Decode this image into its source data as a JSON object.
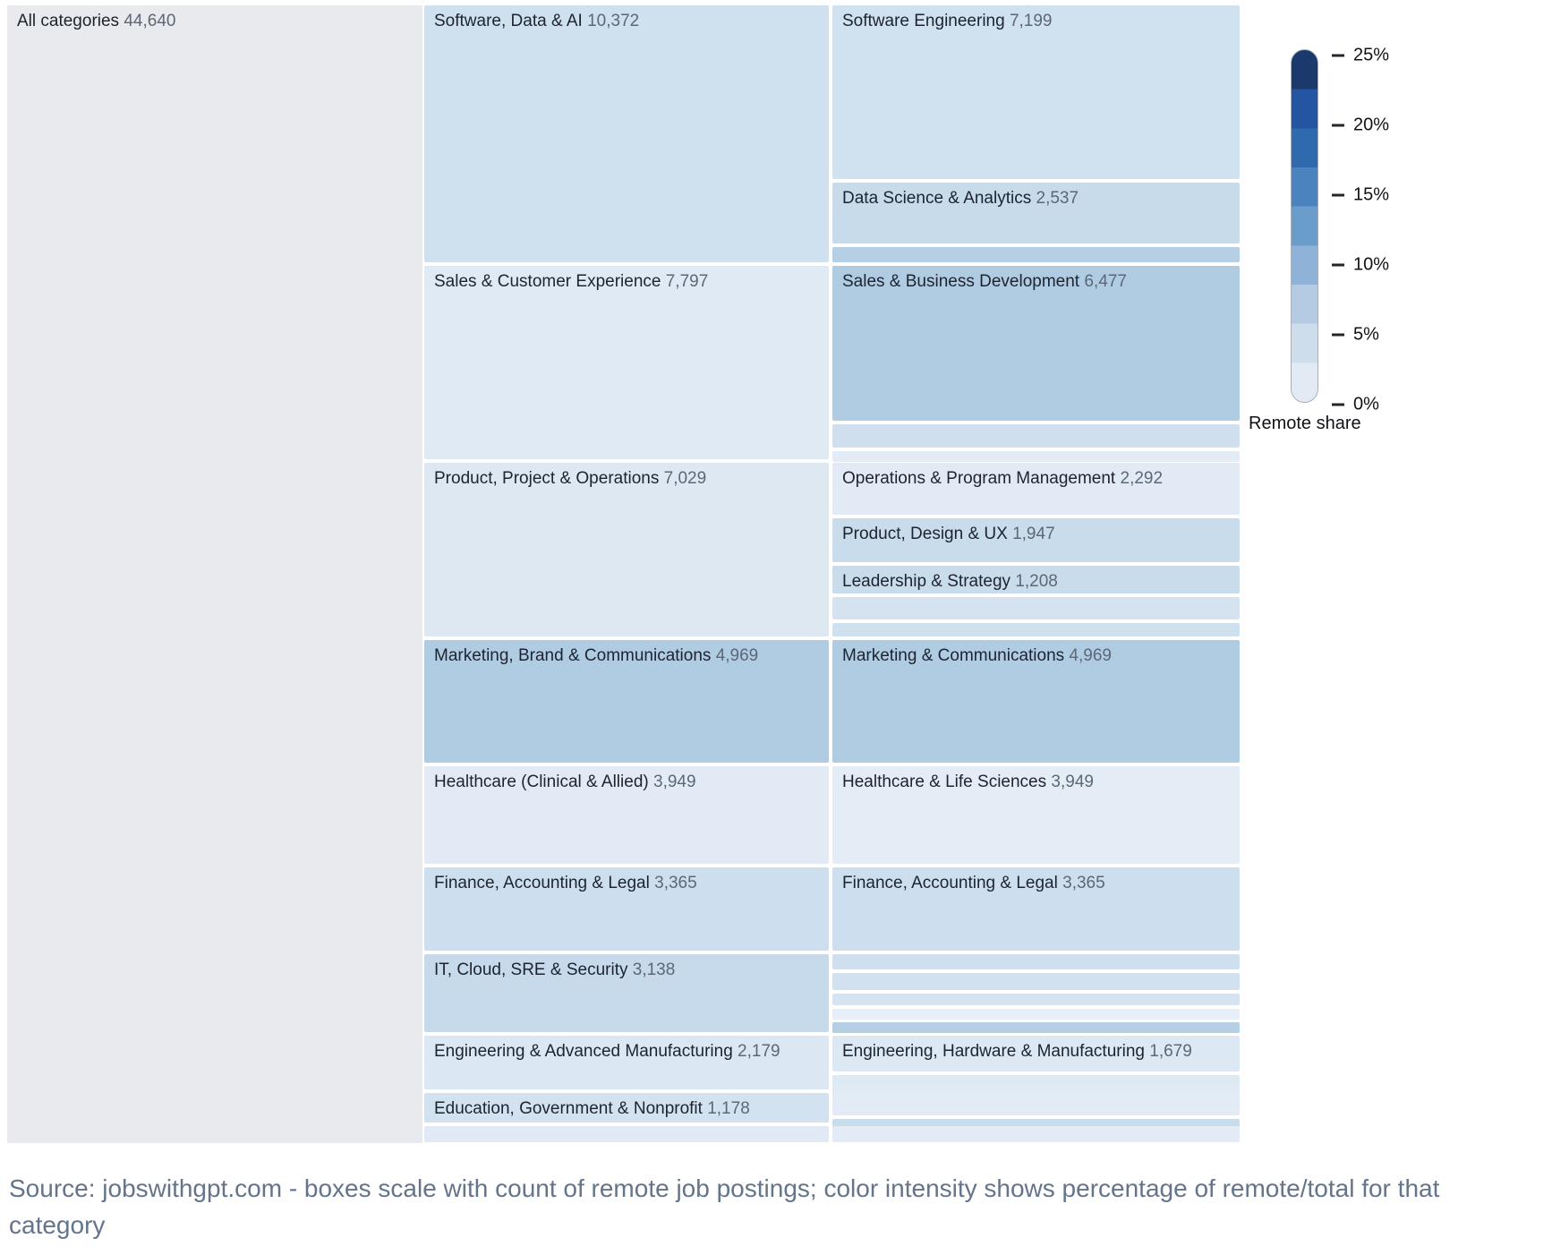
{
  "chart_data": {
    "type": "icicle",
    "unit": "remote job postings",
    "total": 44640,
    "root": {
      "label": "All categories",
      "value": 44640,
      "value_label": "44,640",
      "color": "#e8eaed"
    },
    "categories": [
      {
        "label": "Software, Data & AI",
        "value": 10372,
        "value_label": "10,372",
        "color": "#cfe0ef",
        "children": [
          {
            "label": "Software Engineering",
            "value": 7199,
            "value_label": "7,199",
            "color": "#d0e1ef"
          },
          {
            "label": "Data Science & Analytics",
            "value": 2537,
            "value_label": "2,537",
            "color": "#c7dbeb"
          },
          {
            "label": "",
            "value": 636,
            "value_label": "",
            "color": "#b5cfe4"
          }
        ]
      },
      {
        "label": "Sales & Customer Experience",
        "value": 7797,
        "value_label": "7,797",
        "color": "#e0eaf5",
        "children": [
          {
            "label": "Sales & Business Development",
            "value": 6477,
            "value_label": "6,477",
            "color": "#b0cce3"
          },
          {
            "label": "",
            "value": 990,
            "value_label": "",
            "color": "#cfdfee"
          },
          {
            "label": "",
            "value": 330,
            "value_label": "",
            "color": "#e3ecf6"
          }
        ]
      },
      {
        "label": "Product, Project & Operations",
        "value": 7029,
        "value_label": "7,029",
        "color": "#dde8f3",
        "children": [
          {
            "label": "Operations & Program Management",
            "value": 2292,
            "value_label": "2,292",
            "color": "#e2eaf5"
          },
          {
            "label": "Product, Design & UX",
            "value": 1947,
            "value_label": "1,947",
            "color": "#c9dcec"
          },
          {
            "label": "Leadership & Strategy",
            "value": 1208,
            "value_label": "1,208",
            "color": "#c9dcec"
          },
          {
            "label": "",
            "value": 1000,
            "value_label": "",
            "color": "#d5e3f0"
          },
          {
            "label": "",
            "value": 582,
            "value_label": "",
            "color": "#cfe0ee"
          }
        ]
      },
      {
        "label": "Marketing, Brand & Communications",
        "value": 4969,
        "value_label": "4,969",
        "color": "#b0cce3",
        "children": [
          {
            "label": "Marketing & Communications",
            "value": 4969,
            "value_label": "4,969",
            "color": "#b0cce3"
          }
        ]
      },
      {
        "label": "Healthcare (Clinical & Allied)",
        "value": 3949,
        "value_label": "3,949",
        "color": "#e2ebf5",
        "children": [
          {
            "label": "Healthcare & Life Sciences",
            "value": 3949,
            "value_label": "3,949",
            "color": "#e4ecf6"
          }
        ]
      },
      {
        "label": "Finance, Accounting & Legal",
        "value": 3365,
        "value_label": "3,365",
        "color": "#cddfee",
        "children": [
          {
            "label": "Finance, Accounting & Legal",
            "value": 3365,
            "value_label": "3,365",
            "color": "#cddfee"
          }
        ]
      },
      {
        "label": "IT, Cloud, SRE & Security",
        "value": 3138,
        "value_label": "3,138",
        "color": "#c6daeb",
        "children": [
          {
            "label": "",
            "value": 770,
            "value_label": "",
            "color": "#cfdfee"
          },
          {
            "label": "",
            "value": 840,
            "value_label": "",
            "color": "#d2e1ef"
          },
          {
            "label": "",
            "value": 575,
            "value_label": "",
            "color": "#d6e4f1"
          },
          {
            "label": "",
            "value": 490,
            "value_label": "",
            "color": "#e6eef7"
          },
          {
            "label": "",
            "value": 463,
            "value_label": "",
            "color": "#b5cfe4"
          }
        ]
      },
      {
        "label": "Engineering & Advanced Manufacturing",
        "value": 2179,
        "value_label": "2,179",
        "color": "#dbe7f2",
        "children": [
          {
            "label": "Engineering, Hardware & Manufacturing",
            "value": 1679,
            "value_label": "1,679",
            "color": "#dce8f3"
          },
          {
            "label": "",
            "value": 310,
            "value_label": "",
            "color": "#dde9f3"
          },
          {
            "label": "",
            "value": 190,
            "value_label": "",
            "color": "#e0eaf4"
          }
        ]
      },
      {
        "label": "Education, Government & Nonprofit",
        "value": 1178,
        "value_label": "1,178",
        "color": "#d3e2f0",
        "children": [
          {
            "label": "",
            "value": 1000,
            "value_label": "",
            "color": "#e3ebf6"
          },
          {
            "label": "",
            "value": 178,
            "value_label": "",
            "color": "#c8dcec"
          }
        ]
      },
      {
        "label": "",
        "value": 664,
        "value_label": "",
        "color": "#e1eaf4",
        "children": [
          {
            "label": "",
            "value": 664,
            "value_label": "",
            "color": "#e3ebf6"
          }
        ]
      }
    ],
    "legend": {
      "title": "Remote share",
      "tick_labels": [
        "25%",
        "20%",
        "15%",
        "10%",
        "5%",
        "0%"
      ],
      "band_colors_top_to_bottom": [
        "#1b3a6b",
        "#2355a2",
        "#2f69ae",
        "#4a83bd",
        "#6b9dcb",
        "#8fb3d8",
        "#b4cbe3",
        "#cdddec",
        "#e2eaf4"
      ]
    },
    "source_note": "Source: jobswithgpt.com - boxes scale with count of remote job postings; color intensity shows percentage of remote/total for that category",
    "text_colors": {
      "label": "#1d2430",
      "value": "#5d6776",
      "source": "#64748b"
    }
  }
}
